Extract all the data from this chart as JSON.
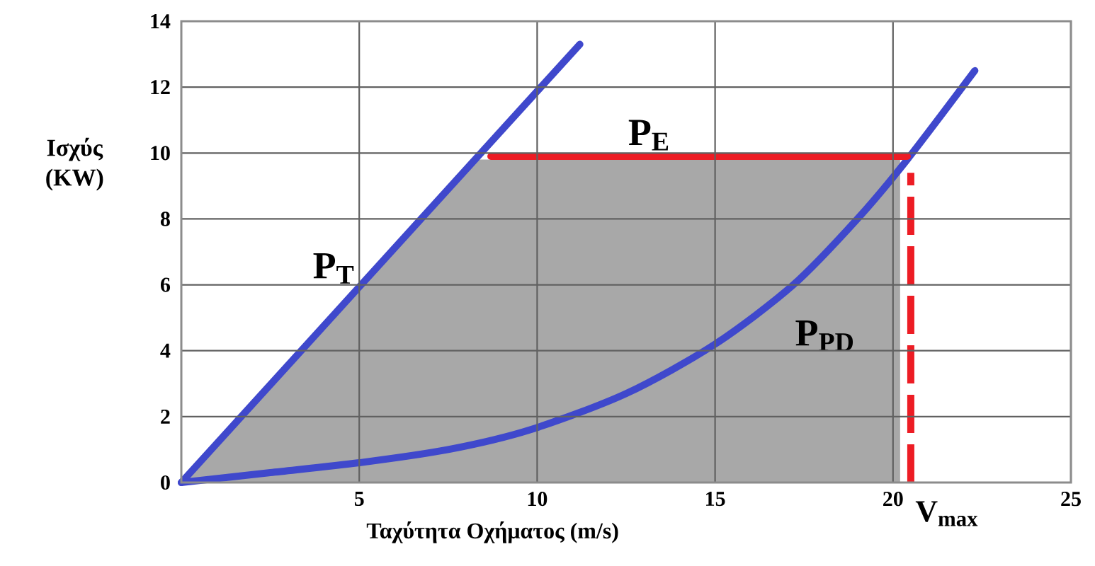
{
  "chart_data": {
    "type": "line",
    "xlabel": "Ταχύτητα Οχήματος (m/s)",
    "ylabel": "Ισχύς (KW)",
    "xlim": [
      0,
      25
    ],
    "ylim": [
      0,
      14
    ],
    "xticks": [
      5,
      10,
      15,
      20,
      25
    ],
    "yticks": [
      0,
      2,
      4,
      6,
      8,
      10,
      12,
      14
    ],
    "grid": true,
    "series": [
      {
        "type": "area",
        "color": "#a8a8a8",
        "x": [
          0,
          8.2,
          20.2,
          20.2
        ],
        "values": [
          0,
          9.8,
          9.8,
          0
        ]
      },
      {
        "name": "P$_{T}$",
        "color": "#3f48cc",
        "x": [
          0,
          11.2
        ],
        "values": [
          0,
          13.3
        ]
      },
      {
        "name": "P$_{PD}$",
        "color": "#3f48cc",
        "x": [
          0,
          2.5,
          5,
          7.5,
          9.8,
          12.5,
          15,
          17.2,
          19,
          20.4,
          22.3
        ],
        "values": [
          0,
          0.3,
          0.6,
          1.0,
          1.6,
          2.7,
          4.2,
          6.0,
          8.0,
          9.8,
          12.5
        ]
      },
      {
        "name": "P$_{E}$",
        "color": "#ed1c24",
        "x": [
          8.7,
          20.4
        ],
        "values": [
          9.9,
          9.9
        ]
      },
      {
        "name": "V$_{max}$",
        "color": "#ed1c24",
        "line_style": "dashed",
        "x": [
          20.5,
          20.5
        ],
        "values": [
          0,
          9.4
        ]
      }
    ]
  }
}
